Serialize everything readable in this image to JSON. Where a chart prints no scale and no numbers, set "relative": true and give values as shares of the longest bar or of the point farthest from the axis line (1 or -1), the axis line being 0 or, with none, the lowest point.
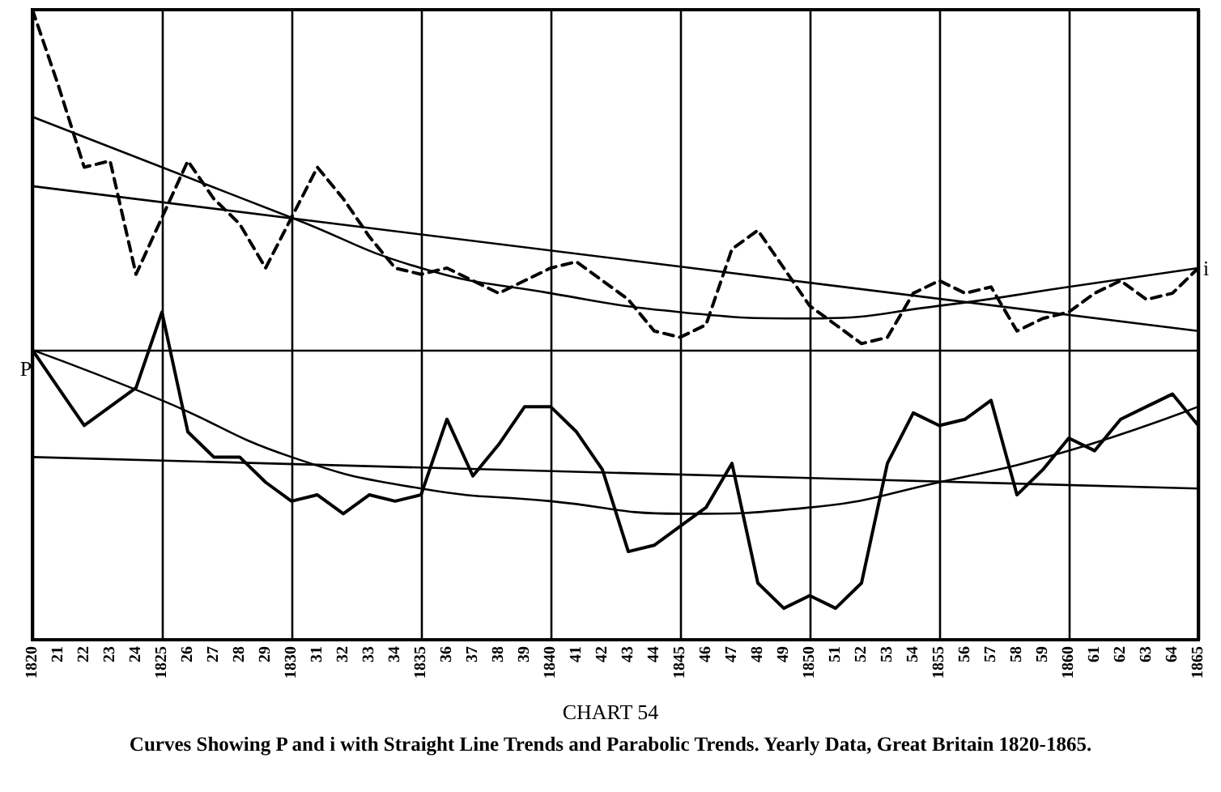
{
  "chart_data": {
    "type": "line",
    "title": "CHART 54",
    "subtitle": "Curves Showing P and i with Straight Line Trends and Parabolic Trends. Yearly Data, Great Britain 1820-1865.",
    "relative": true,
    "grid": "x",
    "categories": [
      "1820",
      "21",
      "22",
      "23",
      "24",
      "1825",
      "26",
      "27",
      "28",
      "29",
      "1830",
      "31",
      "32",
      "33",
      "34",
      "1835",
      "36",
      "37",
      "38",
      "39",
      "1840",
      "41",
      "42",
      "43",
      "44",
      "1845",
      "46",
      "47",
      "48",
      "49",
      "1850",
      "51",
      "52",
      "53",
      "54",
      "1855",
      "56",
      "57",
      "58",
      "59",
      "1860",
      "61",
      "62",
      "63",
      "64",
      "1865"
    ],
    "series": [
      {
        "name": "i",
        "color": "#000000",
        "line_style": "dashed",
        "values": [
          1.0,
          0.88,
          0.75,
          0.76,
          0.58,
          0.67,
          0.76,
          0.7,
          0.66,
          0.59,
          0.67,
          0.75,
          0.7,
          0.64,
          0.59,
          0.58,
          0.59,
          0.57,
          0.55,
          0.57,
          0.59,
          0.6,
          0.57,
          0.54,
          0.49,
          0.48,
          0.5,
          0.62,
          0.65,
          0.59,
          0.53,
          0.5,
          0.47,
          0.48,
          0.55,
          0.57,
          0.55,
          0.56,
          0.49,
          0.51,
          0.52,
          0.55,
          0.57,
          0.54,
          0.55,
          0.59
        ]
      },
      {
        "color": "#000000",
        "values": [
          0.72,
          null,
          null,
          null,
          null,
          null,
          null,
          null,
          null,
          null,
          null,
          null,
          null,
          null,
          null,
          null,
          null,
          null,
          null,
          null,
          null,
          null,
          null,
          null,
          null,
          null,
          null,
          null,
          null,
          null,
          null,
          null,
          null,
          null,
          null,
          null,
          null,
          null,
          null,
          null,
          null,
          null,
          null,
          null,
          null,
          0.49
        ]
      },
      {
        "color": "#000000",
        "values": [
          0.83,
          null,
          null,
          null,
          null,
          0.75,
          null,
          null,
          null,
          null,
          0.67,
          null,
          null,
          null,
          null,
          0.59,
          null,
          null,
          null,
          null,
          0.55,
          null,
          null,
          null,
          null,
          0.52,
          null,
          null,
          null,
          null,
          0.51,
          null,
          null,
          null,
          null,
          0.53,
          null,
          null,
          null,
          null,
          0.56,
          null,
          null,
          null,
          null,
          0.59
        ]
      },
      {
        "name": "P",
        "color": "#000000",
        "line_style": "solid",
        "values": [
          0.46,
          0.4,
          0.34,
          0.37,
          0.4,
          0.52,
          0.33,
          0.29,
          0.29,
          0.25,
          0.22,
          0.23,
          0.2,
          0.23,
          0.22,
          0.23,
          0.35,
          0.26,
          0.31,
          0.37,
          0.37,
          0.33,
          0.27,
          0.14,
          0.15,
          0.18,
          0.21,
          0.28,
          0.09,
          0.05,
          0.07,
          0.05,
          0.09,
          0.28,
          0.36,
          0.34,
          0.35,
          0.38,
          0.23,
          0.27,
          0.32,
          0.3,
          0.35,
          0.37,
          0.39,
          0.34
        ]
      },
      {
        "color": "#000000",
        "values": [
          0.29,
          null,
          null,
          null,
          null,
          null,
          null,
          null,
          null,
          null,
          null,
          null,
          null,
          null,
          null,
          null,
          null,
          null,
          null,
          null,
          null,
          null,
          null,
          null,
          null,
          null,
          null,
          null,
          null,
          null,
          null,
          null,
          null,
          null,
          null,
          null,
          null,
          null,
          null,
          null,
          null,
          null,
          null,
          null,
          null,
          0.24
        ]
      },
      {
        "color": "#000000",
        "values": [
          0.46,
          null,
          null,
          null,
          null,
          0.38,
          null,
          null,
          null,
          null,
          0.29,
          null,
          null,
          null,
          null,
          0.24,
          null,
          null,
          null,
          null,
          0.22,
          null,
          null,
          null,
          null,
          0.2,
          null,
          null,
          null,
          null,
          0.21,
          null,
          null,
          null,
          null,
          0.25,
          null,
          null,
          null,
          null,
          0.3,
          null,
          null,
          null,
          null,
          0.37
        ]
      }
    ],
    "ref_lines": [
      {
        "axis": "y",
        "value": 0.46
      }
    ]
  }
}
